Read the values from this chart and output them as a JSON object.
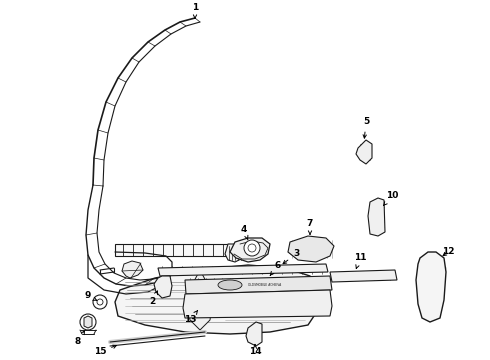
{
  "bg_color": "#ffffff",
  "lc": "#1a1a1a",
  "label_fs": 6.5,
  "figsize": [
    4.9,
    3.6
  ],
  "dpi": 100
}
